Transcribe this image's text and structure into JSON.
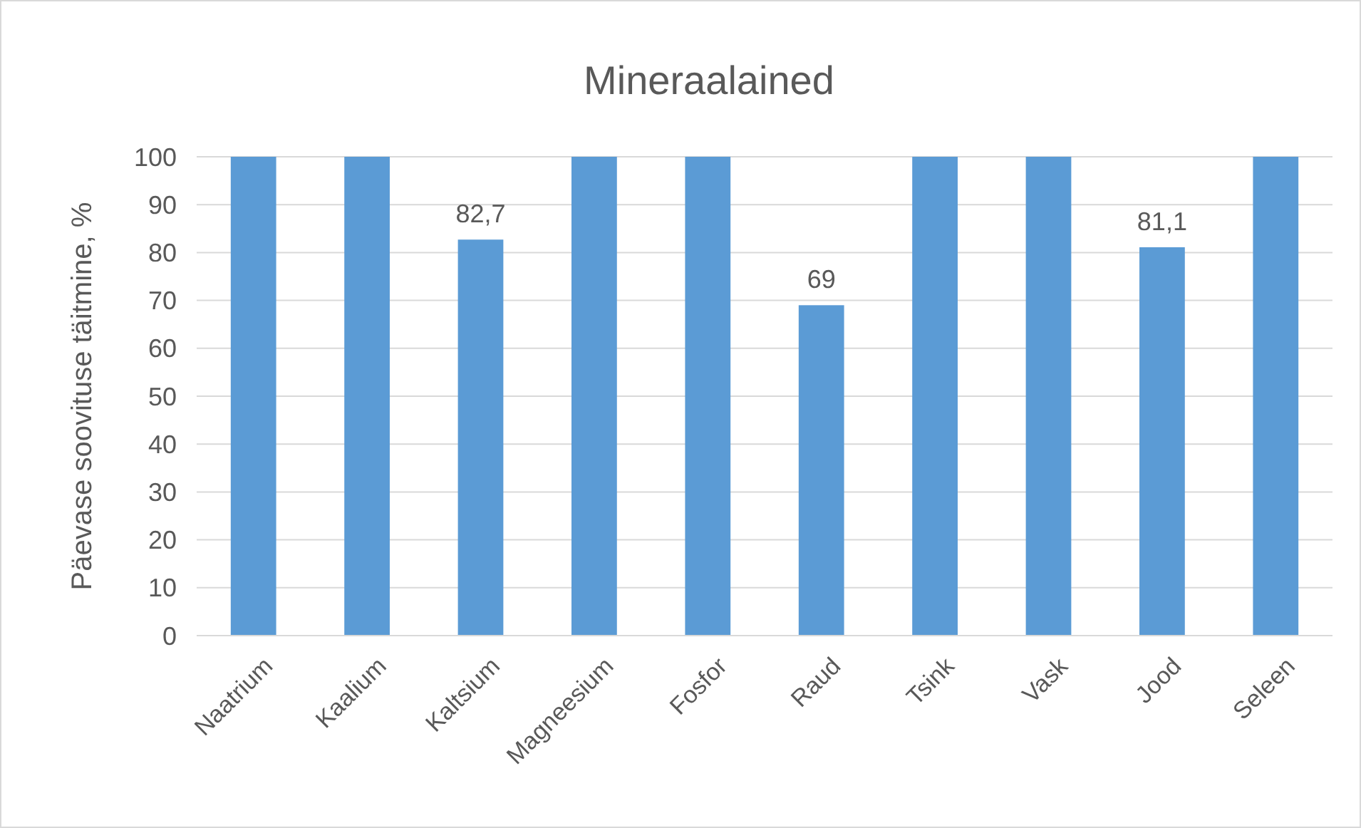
{
  "chart_data": {
    "type": "bar",
    "title": "Mineraalained",
    "ylabel": "Päevase soovituse täitmine, %",
    "categories": [
      "Naatrium",
      "Kaalium",
      "Kaltsium",
      "Magneesium",
      "Fosfor",
      "Raud",
      "Tsink",
      "Vask",
      "Jood",
      "Seleen"
    ],
    "values": [
      100,
      100,
      82.7,
      100,
      100,
      69,
      100,
      100,
      81.1,
      100
    ],
    "value_labels": [
      null,
      null,
      "82,7",
      null,
      null,
      "69",
      null,
      null,
      "81,1",
      null
    ],
    "color": "#5b9bd5",
    "ylim": [
      0,
      100
    ],
    "yticks": [
      0,
      10,
      20,
      30,
      40,
      50,
      60,
      70,
      80,
      90,
      100
    ],
    "grid": "y"
  }
}
